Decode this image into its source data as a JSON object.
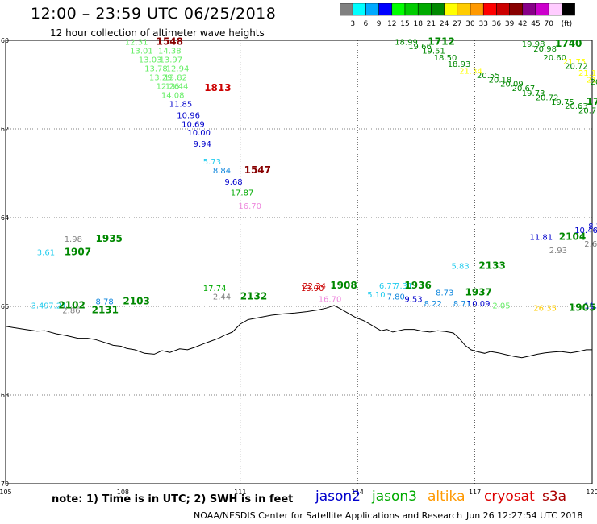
{
  "header": {
    "title": "12:00 – 23:59 UTC 06/25/2018",
    "subtitle": "12 hour collection of altimeter wave heights"
  },
  "colorbar": {
    "colors": [
      "#808080",
      "#00ffff",
      "#00aaff",
      "#0000ff",
      "#00ff00",
      "#00cc00",
      "#00aa00",
      "#008800",
      "#ffff00",
      "#ffcc00",
      "#ff9900",
      "#ff0000",
      "#cc0000",
      "#880000",
      "#880088",
      "#cc00cc",
      "#ffccff",
      "#000000"
    ],
    "ticks": [
      "3",
      "6",
      "9",
      "12",
      "15",
      "18",
      "21",
      "24",
      "27",
      "30",
      "33",
      "36",
      "39",
      "42",
      "45",
      "70"
    ],
    "unit": "(ft)"
  },
  "map": {
    "lat_ticks": [
      "60",
      "62",
      "64",
      "66",
      "68",
      "70"
    ],
    "lon_ticks": [
      "105",
      "108",
      "111",
      "114",
      "117",
      "120"
    ],
    "grid_color": "#000000",
    "coast_color": "#000000"
  },
  "observations": [
    {
      "t": "12.31",
      "c": "#66ee66",
      "lon": 108.05,
      "lat": 60.1
    },
    {
      "t": "1548",
      "c": "#880000",
      "lon": 108.85,
      "lat": 60.1,
      "b": 1
    },
    {
      "t": "13.01",
      "c": "#66ee66",
      "lon": 108.18,
      "lat": 60.3
    },
    {
      "t": "14.38",
      "c": "#66ee66",
      "lon": 108.9,
      "lat": 60.3
    },
    {
      "t": "13.03",
      "c": "#66ee66",
      "lon": 108.4,
      "lat": 60.5
    },
    {
      "t": "13.97",
      "c": "#66ee66",
      "lon": 108.93,
      "lat": 60.5
    },
    {
      "t": "13.78",
      "c": "#66ee66",
      "lon": 108.55,
      "lat": 60.7
    },
    {
      "t": "12.94",
      "c": "#66ee66",
      "lon": 109.1,
      "lat": 60.7
    },
    {
      "t": "13.29",
      "c": "#66ee66",
      "lon": 108.67,
      "lat": 60.9
    },
    {
      "t": "13.82",
      "c": "#66ee66",
      "lon": 109.05,
      "lat": 60.9
    },
    {
      "t": "12.26",
      "c": "#66ee66",
      "lon": 108.85,
      "lat": 61.1
    },
    {
      "t": "13.44",
      "c": "#66ee66",
      "lon": 109.08,
      "lat": 61.1
    },
    {
      "t": "14.08",
      "c": "#66ee66",
      "lon": 108.98,
      "lat": 61.3
    },
    {
      "t": "1813",
      "c": "#cc0000",
      "lon": 110.08,
      "lat": 61.15,
      "b": 1
    },
    {
      "t": "11.85",
      "c": "#0000cc",
      "lon": 109.18,
      "lat": 61.5
    },
    {
      "t": "10.96",
      "c": "#0000cc",
      "lon": 109.38,
      "lat": 61.75
    },
    {
      "t": "10.69",
      "c": "#0000cc",
      "lon": 109.5,
      "lat": 61.95
    },
    {
      "t": "10.00",
      "c": "#0000cc",
      "lon": 109.65,
      "lat": 62.15
    },
    {
      "t": "9.94",
      "c": "#0000cc",
      "lon": 109.8,
      "lat": 62.4
    },
    {
      "t": "5.73",
      "c": "#22ccee",
      "lon": 110.05,
      "lat": 62.8
    },
    {
      "t": "8.84",
      "c": "#1188dd",
      "lon": 110.3,
      "lat": 63.0
    },
    {
      "t": "1547",
      "c": "#880000",
      "lon": 111.1,
      "lat": 63.0,
      "b": 1
    },
    {
      "t": "9.68",
      "c": "#0000cc",
      "lon": 110.6,
      "lat": 63.25
    },
    {
      "t": "17.87",
      "c": "#00aa00",
      "lon": 110.75,
      "lat": 63.5
    },
    {
      "t": "16.70",
      "c": "#ee88dd",
      "lon": 110.95,
      "lat": 63.8
    },
    {
      "t": "1.98",
      "c": "#808080",
      "lon": 106.5,
      "lat": 64.55
    },
    {
      "t": "1935",
      "c": "#008800",
      "lon": 107.3,
      "lat": 64.55,
      "b": 1
    },
    {
      "t": "3.61",
      "c": "#22ccee",
      "lon": 105.8,
      "lat": 64.85
    },
    {
      "t": "1907",
      "c": "#008800",
      "lon": 106.5,
      "lat": 64.85,
      "b": 1
    },
    {
      "t": "3.49",
      "c": "#22ccee",
      "lon": 105.65,
      "lat": 66.05
    },
    {
      "t": "7.21",
      "c": "#22ccee",
      "lon": 106.1,
      "lat": 66.05
    },
    {
      "t": "2102",
      "c": "#008800",
      "lon": 106.35,
      "lat": 66.05,
      "b": 1
    },
    {
      "t": "2.86",
      "c": "#808080",
      "lon": 106.45,
      "lat": 66.15
    },
    {
      "t": "2131",
      "c": "#008800",
      "lon": 107.2,
      "lat": 66.15,
      "b": 1
    },
    {
      "t": "8.78",
      "c": "#1188dd",
      "lon": 107.3,
      "lat": 65.95
    },
    {
      "t": "2103",
      "c": "#008800",
      "lon": 108.0,
      "lat": 65.95,
      "b": 1
    },
    {
      "t": "17.74",
      "c": "#00aa00",
      "lon": 110.05,
      "lat": 65.65
    },
    {
      "t": "2.44",
      "c": "#808080",
      "lon": 110.3,
      "lat": 65.85
    },
    {
      "t": "2132",
      "c": "#008800",
      "lon": 111.0,
      "lat": 65.85,
      "b": 1
    },
    {
      "t": "22.34",
      "c": "#cc0000",
      "lon": 112.6,
      "lat": 65.6
    },
    {
      "t": "13.90",
      "c": "#cc0000",
      "lon": 112.55,
      "lat": 65.65
    },
    {
      "t": "1908",
      "c": "#008800",
      "lon": 113.3,
      "lat": 65.6,
      "b": 1
    },
    {
      "t": "16.70",
      "c": "#ee88dd",
      "lon": 113.0,
      "lat": 65.9
    },
    {
      "t": "6.77",
      "c": "#22ccee",
      "lon": 114.55,
      "lat": 65.6
    },
    {
      "t": "7.31",
      "c": "#22ccee",
      "lon": 114.95,
      "lat": 65.6
    },
    {
      "t": "1936",
      "c": "#008800",
      "lon": 115.2,
      "lat": 65.6,
      "b": 1
    },
    {
      "t": "5.10",
      "c": "#22ccee",
      "lon": 114.25,
      "lat": 65.8
    },
    {
      "t": "7.80",
      "c": "#1188dd",
      "lon": 114.75,
      "lat": 65.85
    },
    {
      "t": "9.53",
      "c": "#0000cc",
      "lon": 115.2,
      "lat": 65.9
    },
    {
      "t": "8.22",
      "c": "#1188dd",
      "lon": 115.7,
      "lat": 66.0
    },
    {
      "t": "8.73",
      "c": "#1188dd",
      "lon": 116.0,
      "lat": 65.75
    },
    {
      "t": "1937",
      "c": "#008800",
      "lon": 116.75,
      "lat": 65.75,
      "b": 1
    },
    {
      "t": "8.71",
      "c": "#1188dd",
      "lon": 116.45,
      "lat": 66.0
    },
    {
      "t": "10.09",
      "c": "#0000cc",
      "lon": 116.8,
      "lat": 66.0
    },
    {
      "t": "2.05",
      "c": "#66ee66",
      "lon": 117.45,
      "lat": 66.05
    },
    {
      "t": "5.83",
      "c": "#22ccee",
      "lon": 116.4,
      "lat": 65.15
    },
    {
      "t": "2133",
      "c": "#008800",
      "lon": 117.1,
      "lat": 65.15,
      "b": 1
    },
    {
      "t": "26.35",
      "c": "#ffcc00",
      "lon": 118.5,
      "lat": 66.1
    },
    {
      "t": "1905",
      "c": "#008800",
      "lon": 119.4,
      "lat": 66.1,
      "b": 1
    },
    {
      "t": "11.93",
      "c": "#0000cc",
      "lon": 119.8,
      "lat": 66.05
    },
    {
      "t": "18.99",
      "c": "#008800",
      "lon": 114.95,
      "lat": 60.1
    },
    {
      "t": "1712",
      "c": "#008800",
      "lon": 115.8,
      "lat": 60.1,
      "b": 1
    },
    {
      "t": "19.66",
      "c": "#008800",
      "lon": 115.3,
      "lat": 60.2
    },
    {
      "t": "19.51",
      "c": "#008800",
      "lon": 115.65,
      "lat": 60.3
    },
    {
      "t": "18.50",
      "c": "#008800",
      "lon": 115.95,
      "lat": 60.45
    },
    {
      "t": "18.93",
      "c": "#008800",
      "lon": 116.3,
      "lat": 60.6
    },
    {
      "t": "21.34",
      "c": "#ffff00",
      "lon": 116.6,
      "lat": 60.75
    },
    {
      "t": "20.55",
      "c": "#008800",
      "lon": 117.05,
      "lat": 60.85
    },
    {
      "t": "20.18",
      "c": "#008800",
      "lon": 117.35,
      "lat": 60.95
    },
    {
      "t": "20.09",
      "c": "#008800",
      "lon": 117.65,
      "lat": 61.05
    },
    {
      "t": "20.67",
      "c": "#008800",
      "lon": 117.95,
      "lat": 61.15
    },
    {
      "t": "19.73",
      "c": "#008800",
      "lon": 118.2,
      "lat": 61.25
    },
    {
      "t": "20.72",
      "c": "#008800",
      "lon": 118.55,
      "lat": 61.35
    },
    {
      "t": "19.75",
      "c": "#008800",
      "lon": 118.95,
      "lat": 61.45
    },
    {
      "t": "20.63",
      "c": "#008800",
      "lon": 119.3,
      "lat": 61.55
    },
    {
      "t": "20.73",
      "c": "#008800",
      "lon": 119.65,
      "lat": 61.65
    },
    {
      "t": "17.73",
      "c": "#008800",
      "lon": 119.85,
      "lat": 61.45,
      "b": 1
    },
    {
      "t": "19.98",
      "c": "#008800",
      "lon": 118.2,
      "lat": 60.15
    },
    {
      "t": "1740",
      "c": "#008800",
      "lon": 119.05,
      "lat": 60.15,
      "b": 1
    },
    {
      "t": "20.98",
      "c": "#008800",
      "lon": 118.5,
      "lat": 60.25
    },
    {
      "t": "20.60",
      "c": "#008800",
      "lon": 118.75,
      "lat": 60.45
    },
    {
      "t": "21.75",
      "c": "#ffff00",
      "lon": 119.25,
      "lat": 60.55
    },
    {
      "t": "20.72",
      "c": "#008800",
      "lon": 119.3,
      "lat": 60.65
    },
    {
      "t": "21.12",
      "c": "#ffff00",
      "lon": 119.65,
      "lat": 60.8
    },
    {
      "t": "21.59",
      "c": "#ffff00",
      "lon": 119.85,
      "lat": 60.95
    },
    {
      "t": "20.31",
      "c": "#008800",
      "lon": 119.95,
      "lat": 61.0
    },
    {
      "t": "11.81",
      "c": "#0000cc",
      "lon": 118.4,
      "lat": 64.5
    },
    {
      "t": "2104",
      "c": "#008800",
      "lon": 119.15,
      "lat": 64.5,
      "b": 1
    },
    {
      "t": "10.46",
      "c": "#0000cc",
      "lon": 119.55,
      "lat": 64.35
    },
    {
      "t": "8.28",
      "c": "#0000cc",
      "lon": 119.9,
      "lat": 64.25
    },
    {
      "t": "2.93",
      "c": "#808080",
      "lon": 118.9,
      "lat": 64.8
    },
    {
      "t": "2.68",
      "c": "#808080",
      "lon": 119.8,
      "lat": 64.65
    }
  ],
  "coastline": [
    [
      105,
      66.45
    ],
    [
      105.2,
      66.48
    ],
    [
      105.5,
      66.52
    ],
    [
      105.8,
      66.56
    ],
    [
      106.0,
      66.55
    ],
    [
      106.3,
      66.62
    ],
    [
      106.55,
      66.66
    ],
    [
      106.85,
      66.72
    ],
    [
      107.1,
      66.72
    ],
    [
      107.3,
      66.75
    ],
    [
      107.55,
      66.82
    ],
    [
      107.75,
      66.88
    ],
    [
      107.95,
      66.9
    ],
    [
      108.1,
      66.95
    ],
    [
      108.3,
      66.98
    ],
    [
      108.55,
      67.06
    ],
    [
      108.8,
      67.08
    ],
    [
      109.0,
      67.0
    ],
    [
      109.2,
      67.04
    ],
    [
      109.45,
      66.96
    ],
    [
      109.65,
      66.98
    ],
    [
      109.85,
      66.92
    ],
    [
      110.05,
      66.85
    ],
    [
      110.2,
      66.8
    ],
    [
      110.45,
      66.72
    ],
    [
      110.6,
      66.65
    ],
    [
      110.8,
      66.58
    ],
    [
      111.0,
      66.4
    ],
    [
      111.2,
      66.3
    ],
    [
      111.5,
      66.25
    ],
    [
      111.8,
      66.2
    ],
    [
      112.1,
      66.17
    ],
    [
      112.4,
      66.15
    ],
    [
      112.7,
      66.12
    ],
    [
      113.0,
      66.08
    ],
    [
      113.2,
      66.04
    ],
    [
      113.4,
      65.98
    ],
    [
      113.55,
      66.05
    ],
    [
      113.75,
      66.15
    ],
    [
      113.95,
      66.25
    ],
    [
      114.15,
      66.32
    ],
    [
      114.35,
      66.42
    ],
    [
      114.5,
      66.5
    ],
    [
      114.6,
      66.55
    ],
    [
      114.75,
      66.52
    ],
    [
      114.9,
      66.58
    ],
    [
      115.05,
      66.55
    ],
    [
      115.2,
      66.52
    ],
    [
      115.45,
      66.52
    ],
    [
      115.65,
      66.56
    ],
    [
      115.85,
      66.58
    ],
    [
      116.05,
      66.55
    ],
    [
      116.25,
      66.57
    ],
    [
      116.45,
      66.6
    ],
    [
      116.6,
      66.72
    ],
    [
      116.75,
      66.88
    ],
    [
      116.9,
      66.98
    ],
    [
      117.05,
      67.02
    ],
    [
      117.25,
      67.06
    ],
    [
      117.4,
      67.02
    ],
    [
      117.6,
      67.05
    ],
    [
      117.8,
      67.09
    ],
    [
      118.0,
      67.13
    ],
    [
      118.2,
      67.16
    ],
    [
      118.4,
      67.12
    ],
    [
      118.6,
      67.08
    ],
    [
      118.8,
      67.05
    ],
    [
      119.0,
      67.03
    ],
    [
      119.2,
      67.02
    ],
    [
      119.45,
      67.05
    ],
    [
      119.65,
      67.02
    ],
    [
      119.85,
      66.98
    ],
    [
      120.0,
      66.98
    ]
  ],
  "footer": {
    "note": "note:  1) Time is in UTC;  2) SWH is in feet",
    "satellites": [
      {
        "name": "jason2",
        "color": "#0000cc"
      },
      {
        "name": "jason3",
        "color": "#00aa00"
      },
      {
        "name": "altika",
        "color": "#ff9900"
      },
      {
        "name": "cryosat",
        "color": "#dd0000"
      },
      {
        "name": "s3a",
        "color": "#aa0000"
      }
    ],
    "credit": "NOAA/NESDIS Center for Satellite Applications and Research",
    "timestamp": "Jun 26 12:27:54 UTC 2018"
  }
}
